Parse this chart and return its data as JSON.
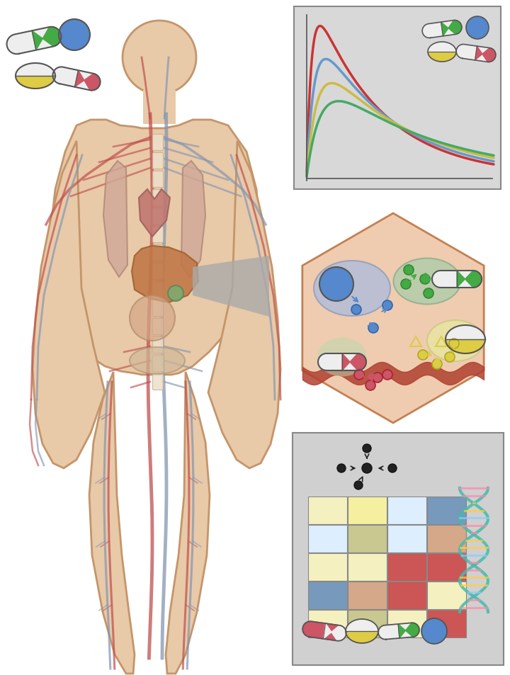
{
  "bg_color": "#ffffff",
  "body_skin_color": "#e8c9a8",
  "body_outline_color": "#c4956a",
  "artery_color": "#c0504d",
  "vein_color": "#8496b0",
  "organ_color": "#d4967a",
  "liver_color": "#c07850",
  "pk_panel_bg": "#d8d8d8",
  "heatmap_panel_bg": "#d0d0d0",
  "liver_panel_bg": "#e8c0a8",
  "pk_curves": {
    "red": "#cc3333",
    "blue": "#6699cc",
    "yellow": "#ccbb44",
    "green": "#44aa66"
  },
  "pill_green": "#44aa44",
  "pill_blue": "#5588cc",
  "pill_yellow": "#ddcc44",
  "pill_red": "#cc5566",
  "pill_white": "#eeeeee",
  "heatmap_data": [
    [
      "#f5f0c0",
      "#f5f0a0",
      "#ddeeff",
      "#7799bb"
    ],
    [
      "#ddeeff",
      "#c8c890",
      "#ddeeff",
      "#d4a888"
    ],
    [
      "#f5f0c0",
      "#f5f0c0",
      "#cc5555",
      "#cc5555"
    ],
    [
      "#7799bb",
      "#d4a888",
      "#cc5555",
      "#f5f0c0"
    ],
    [
      "#f5f0c0",
      "#c8c890",
      "#f5f0c0",
      "#cc5555"
    ]
  ],
  "node_colors": {
    "black": "#222222",
    "green": "#44aa44",
    "blue": "#5588cc",
    "yellow": "#ddcc44",
    "red": "#cc4444"
  }
}
